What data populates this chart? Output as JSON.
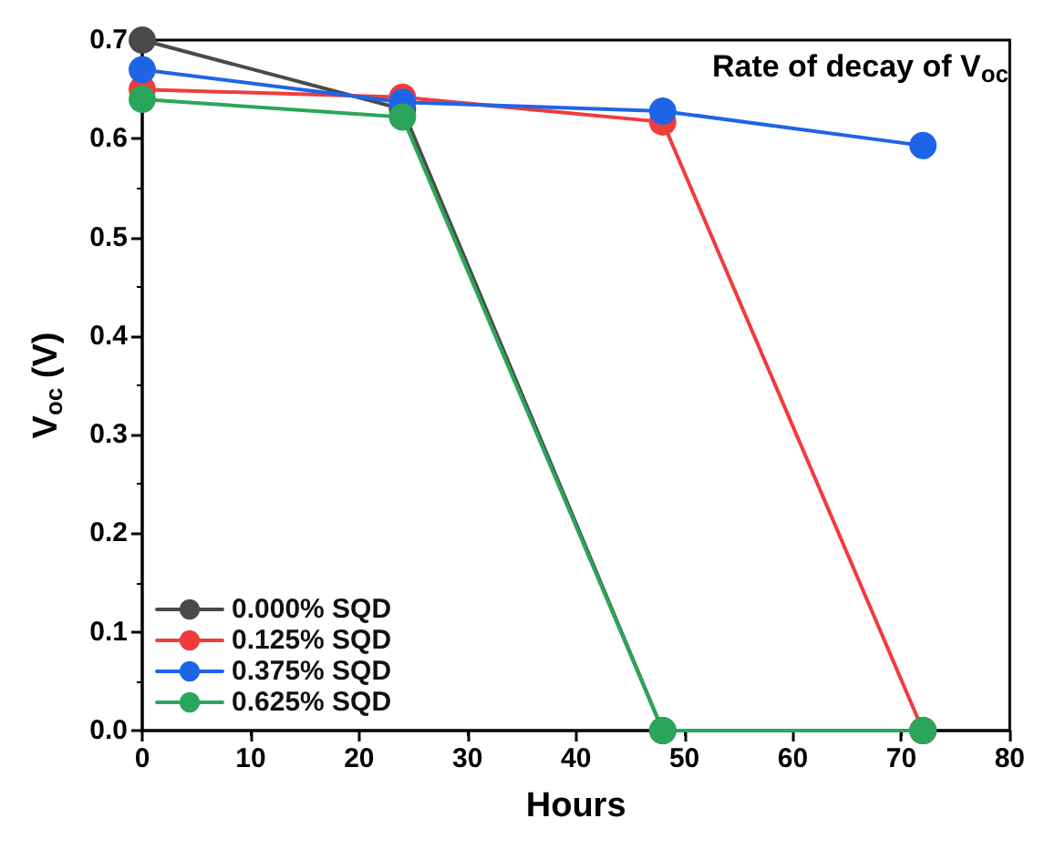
{
  "chart_data": {
    "type": "line",
    "xlabel": "Hours",
    "ylabel": "V$_{oc}$ (V)",
    "annotations": [
      "Rate of decay of V$_{oc}$"
    ],
    "xlim": [
      0,
      80
    ],
    "xticks": [
      0,
      10,
      20,
      30,
      40,
      50,
      60,
      70,
      80
    ],
    "ylim": [
      0,
      0.7
    ],
    "yticks": [
      {
        "value": 0,
        "label": "0.0"
      },
      0.1,
      0.2,
      0.3,
      0.4,
      0.5,
      0.6,
      0.7
    ],
    "x": [
      0,
      24,
      48,
      72
    ],
    "series": [
      {
        "name": "0.000% SQD",
        "color": "#4a4a4a",
        "values": [
          0.7,
          0.63,
          0,
          0
        ]
      },
      {
        "name": "0.125% SQD",
        "color": "#f03c3c",
        "values": [
          0.65,
          0.642,
          0.617,
          0
        ]
      },
      {
        "name": "0.375% SQD",
        "color": "#1e64e6",
        "values": [
          0.67,
          0.637,
          0.628,
          0.593
        ]
      },
      {
        "name": "0.625% SQD",
        "color": "#2aa65a",
        "values": [
          0.64,
          0.622,
          0,
          0
        ]
      }
    ],
    "legend": "bottom left",
    "marker": "circle",
    "line_style": "solid",
    "grid": false
  }
}
